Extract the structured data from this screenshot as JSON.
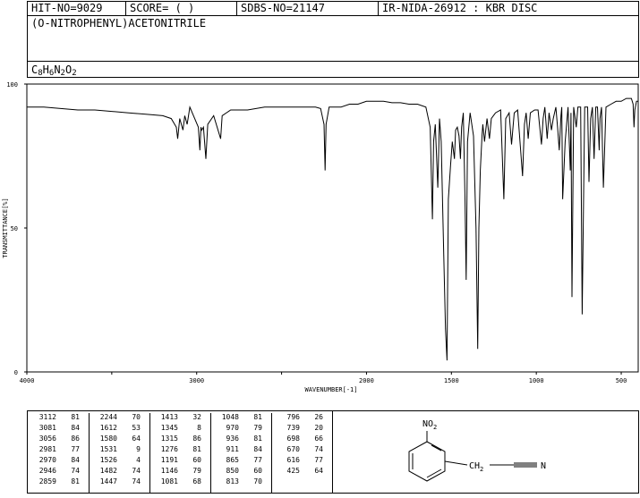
{
  "header": {
    "hit_no": "HIT-NO=9029",
    "score": "SCORE=  (   )",
    "sdbs_no": "SDBS-NO=21147",
    "source": "IR-NIDA-26912 : KBR DISC"
  },
  "compound": {
    "name": "(O-NITROPHENYL)ACETONITRILE",
    "formula_parts": [
      {
        "t": "C",
        "sub": false
      },
      {
        "t": "8",
        "sub": true
      },
      {
        "t": "H",
        "sub": false
      },
      {
        "t": "6",
        "sub": true
      },
      {
        "t": "N",
        "sub": false
      },
      {
        "t": "2",
        "sub": true
      },
      {
        "t": "O",
        "sub": false
      },
      {
        "t": "2",
        "sub": true
      }
    ]
  },
  "chart_data": {
    "type": "line",
    "xlabel": "WAVENUMBER[-1]",
    "ylabel": "TRANSMITTANCE[%]",
    "xlim": [
      4000,
      400
    ],
    "ylim": [
      0,
      100
    ],
    "x_ticks": [
      4000,
      3000,
      2000,
      1500,
      1000,
      500
    ],
    "x_tick_values": [
      4000,
      3500,
      3000,
      2500,
      2000,
      1500,
      1000,
      500
    ],
    "y_ticks": [
      0,
      50,
      100
    ],
    "grid": false,
    "series": [
      {
        "x": [
          4000,
          3900,
          3800,
          3700,
          3600,
          3500,
          3400,
          3300,
          3200,
          3150,
          3120,
          3112,
          3100,
          3081,
          3070,
          3056,
          3040,
          2990,
          2981,
          2975,
          2970,
          2960,
          2946,
          2935,
          2900,
          2859,
          2850,
          2800,
          2700,
          2600,
          2500,
          2400,
          2300,
          2270,
          2250,
          2244,
          2238,
          2220,
          2150,
          2100,
          2050,
          2000,
          1950,
          1900,
          1850,
          1800,
          1750,
          1700,
          1650,
          1625,
          1612,
          1605,
          1595,
          1580,
          1570,
          1560,
          1545,
          1535,
          1526,
          1518,
          1505,
          1495,
          1482,
          1475,
          1465,
          1455,
          1447,
          1440,
          1430,
          1420,
          1413,
          1405,
          1390,
          1370,
          1355,
          1345,
          1338,
          1330,
          1320,
          1315,
          1305,
          1290,
          1276,
          1265,
          1240,
          1210,
          1191,
          1180,
          1160,
          1146,
          1130,
          1110,
          1081,
          1070,
          1060,
          1048,
          1035,
          1010,
          990,
          970,
          960,
          950,
          936,
          925,
          911,
          900,
          885,
          875,
          865,
          855,
          850,
          845,
          830,
          813,
          800,
          796,
          790,
          780,
          765,
          755,
          739,
          730,
          715,
          698,
          690,
          680,
          670,
          660,
          650,
          640,
          630,
          625,
          616,
          605,
          590,
          560,
          530,
          500,
          470,
          440,
          430,
          425,
          420,
          410,
          400
        ],
        "y": [
          92,
          92,
          91.5,
          91,
          91,
          90.5,
          90,
          89.5,
          89,
          88,
          85,
          81,
          88,
          84,
          89,
          86,
          92,
          85,
          77,
          85,
          84,
          85,
          74,
          86,
          89,
          81,
          89,
          91,
          91,
          92,
          92,
          92,
          92,
          91.5,
          86,
          70,
          86,
          92,
          92,
          93,
          93,
          94,
          94,
          94,
          93.5,
          93.5,
          93,
          93,
          92,
          85,
          53,
          80,
          86,
          64,
          88,
          80,
          40,
          15,
          4,
          60,
          72,
          80,
          74,
          84,
          85,
          82,
          74,
          85,
          90,
          60,
          32,
          80,
          90,
          82,
          50,
          8,
          50,
          70,
          82,
          86,
          80,
          88,
          81,
          88,
          90,
          91,
          60,
          88,
          90,
          79,
          90,
          91,
          68,
          86,
          90,
          81,
          90,
          91,
          91,
          79,
          88,
          92,
          81,
          90,
          84,
          88,
          92,
          85,
          77,
          89,
          92,
          60,
          80,
          92,
          70,
          90,
          26,
          92,
          85,
          92,
          92,
          20,
          92,
          92,
          66,
          88,
          92,
          74,
          92,
          92,
          77,
          88,
          92,
          64,
          92,
          93,
          94,
          94,
          95,
          95,
          93,
          85,
          91,
          94,
          94
        ]
      }
    ],
    "peak_table": [
      [
        [
          "3112",
          "81"
        ],
        [
          "3081",
          "84"
        ],
        [
          "3056",
          "86"
        ],
        [
          "2981",
          "77"
        ],
        [
          "2970",
          "84"
        ],
        [
          "2946",
          "74"
        ],
        [
          "2859",
          "81"
        ]
      ],
      [
        [
          "2244",
          "70"
        ],
        [
          "1612",
          "53"
        ],
        [
          "1580",
          "64"
        ],
        [
          "1531",
          "9"
        ],
        [
          "1526",
          "4"
        ],
        [
          "1482",
          "74"
        ],
        [
          "1447",
          "74"
        ]
      ],
      [
        [
          "1413",
          "32"
        ],
        [
          "1345",
          "8"
        ],
        [
          "1315",
          "86"
        ],
        [
          "1276",
          "81"
        ],
        [
          "1191",
          "60"
        ],
        [
          "1146",
          "79"
        ],
        [
          "1081",
          "68"
        ]
      ],
      [
        [
          "1048",
          "81"
        ],
        [
          "970",
          "79"
        ],
        [
          "936",
          "81"
        ],
        [
          "911",
          "84"
        ],
        [
          "865",
          "77"
        ],
        [
          "850",
          "60"
        ],
        [
          "813",
          "70"
        ]
      ],
      [
        [
          "796",
          "26"
        ],
        [
          "739",
          "20"
        ],
        [
          "698",
          "66"
        ],
        [
          "670",
          "74"
        ],
        [
          "616",
          "77"
        ],
        [
          "425",
          "64"
        ]
      ]
    ]
  },
  "structure": {
    "substituent_top": "NO",
    "substituent_top_sub": "2",
    "chain_ch": "CH",
    "chain_sub": "2",
    "nitrile_n": "N"
  }
}
